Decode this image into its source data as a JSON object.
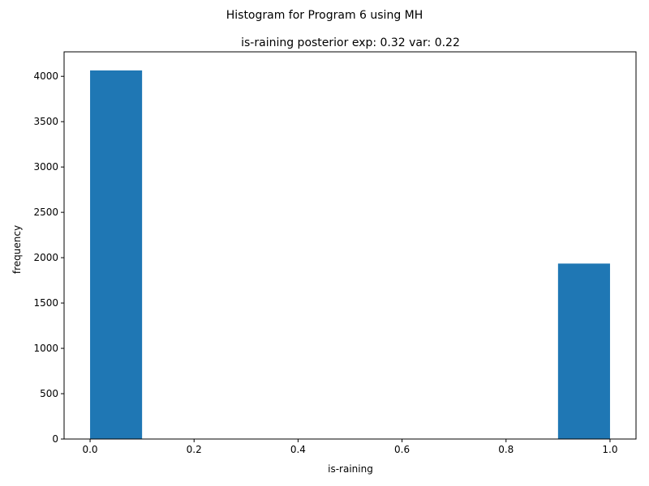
{
  "chart_data": {
    "type": "bar",
    "suptitle": "Histogram for Program 6 using MH",
    "title": "is-raining posterior exp: 0.32    var: 0.22",
    "xlabel": "is-raining",
    "ylabel": "frequency",
    "xlim": [
      -0.05,
      1.05
    ],
    "ylim": [
      0,
      4270
    ],
    "xticks": [
      0.0,
      0.2,
      0.4,
      0.6,
      0.8,
      1.0
    ],
    "xtick_labels": [
      "0.0",
      "0.2",
      "0.4",
      "0.6",
      "0.8",
      "1.0"
    ],
    "yticks": [
      0,
      500,
      1000,
      1500,
      2000,
      2500,
      3000,
      3500,
      4000
    ],
    "ytick_labels": [
      "0",
      "500",
      "1000",
      "1500",
      "2000",
      "2500",
      "3000",
      "3500",
      "4000"
    ],
    "grid": false,
    "bar_color": "#1f77b4",
    "bins": [
      {
        "x0": 0.0,
        "x1": 0.1,
        "value": 4065
      },
      {
        "x0": 0.1,
        "x1": 0.2,
        "value": 0
      },
      {
        "x0": 0.2,
        "x1": 0.3,
        "value": 0
      },
      {
        "x0": 0.3,
        "x1": 0.4,
        "value": 0
      },
      {
        "x0": 0.4,
        "x1": 0.5,
        "value": 0
      },
      {
        "x0": 0.5,
        "x1": 0.6,
        "value": 0
      },
      {
        "x0": 0.6,
        "x1": 0.7,
        "value": 0
      },
      {
        "x0": 0.7,
        "x1": 0.8,
        "value": 0
      },
      {
        "x0": 0.8,
        "x1": 0.9,
        "value": 0
      },
      {
        "x0": 0.9,
        "x1": 1.0,
        "value": 1935
      }
    ]
  }
}
